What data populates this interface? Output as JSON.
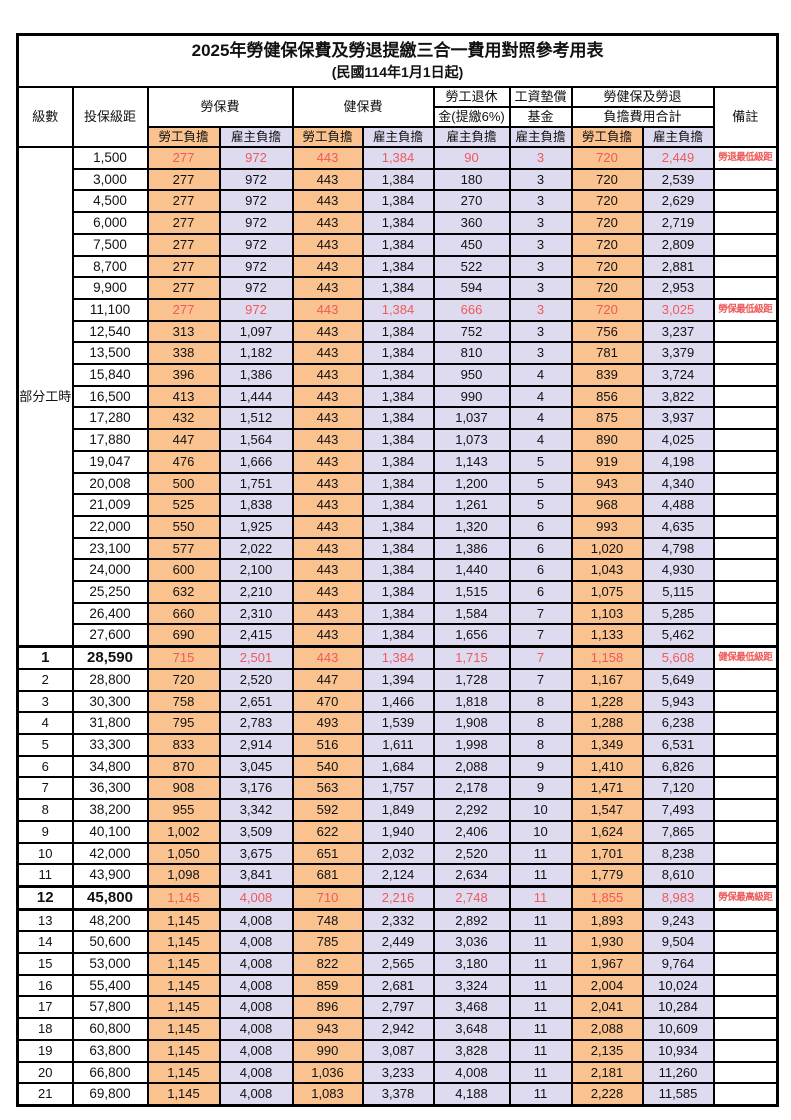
{
  "title": "2025年勞健保保費及勞退提繳三合一費用對照參考用表",
  "subtitle": "(民國114年1月1日起)",
  "header": {
    "level": "級數",
    "bracket": "投保級距",
    "labor_ins": "勞保費",
    "health_ins": "健保費",
    "pension_line1": "勞工退休",
    "pension_line2": "金(提繳6%)",
    "wage_fund_line1": "工資墊償",
    "wage_fund_line2": "基金",
    "total_line1": "勞健保及勞退",
    "total_line2": "負擔費用合計",
    "remark": "備註",
    "employee": "勞工負擔",
    "employer": "雇主負擔"
  },
  "group_label": "部分工時",
  "colors": {
    "employee_bg": "#FAC28E",
    "employer_bg": "#DEDBF0",
    "highlight_red": "#EE5A5A",
    "border": "#000000"
  },
  "rows": [
    {
      "level": "",
      "bracket": "1,500",
      "values": [
        "277",
        "972",
        "443",
        "1,384",
        "90",
        "3",
        "720",
        "2,449"
      ],
      "note": "勞退最低級距",
      "red": true,
      "bold": false
    },
    {
      "level": "",
      "bracket": "3,000",
      "values": [
        "277",
        "972",
        "443",
        "1,384",
        "180",
        "3",
        "720",
        "2,539"
      ],
      "note": "",
      "red": false,
      "bold": false
    },
    {
      "level": "",
      "bracket": "4,500",
      "values": [
        "277",
        "972",
        "443",
        "1,384",
        "270",
        "3",
        "720",
        "2,629"
      ],
      "note": "",
      "red": false,
      "bold": false
    },
    {
      "level": "",
      "bracket": "6,000",
      "values": [
        "277",
        "972",
        "443",
        "1,384",
        "360",
        "3",
        "720",
        "2,719"
      ],
      "note": "",
      "red": false,
      "bold": false
    },
    {
      "level": "",
      "bracket": "7,500",
      "values": [
        "277",
        "972",
        "443",
        "1,384",
        "450",
        "3",
        "720",
        "2,809"
      ],
      "note": "",
      "red": false,
      "bold": false
    },
    {
      "level": "",
      "bracket": "8,700",
      "values": [
        "277",
        "972",
        "443",
        "1,384",
        "522",
        "3",
        "720",
        "2,881"
      ],
      "note": "",
      "red": false,
      "bold": false
    },
    {
      "level": "",
      "bracket": "9,900",
      "values": [
        "277",
        "972",
        "443",
        "1,384",
        "594",
        "3",
        "720",
        "2,953"
      ],
      "note": "",
      "red": false,
      "bold": false
    },
    {
      "level": "",
      "bracket": "11,100",
      "values": [
        "277",
        "972",
        "443",
        "1,384",
        "666",
        "3",
        "720",
        "3,025"
      ],
      "note": "勞保最低級距",
      "red": true,
      "bold": false
    },
    {
      "level": "",
      "bracket": "12,540",
      "values": [
        "313",
        "1,097",
        "443",
        "1,384",
        "752",
        "3",
        "756",
        "3,237"
      ],
      "note": "",
      "red": false,
      "bold": false
    },
    {
      "level": "",
      "bracket": "13,500",
      "values": [
        "338",
        "1,182",
        "443",
        "1,384",
        "810",
        "3",
        "781",
        "3,379"
      ],
      "note": "",
      "red": false,
      "bold": false
    },
    {
      "level": "",
      "bracket": "15,840",
      "values": [
        "396",
        "1,386",
        "443",
        "1,384",
        "950",
        "4",
        "839",
        "3,724"
      ],
      "note": "",
      "red": false,
      "bold": false
    },
    {
      "level": "",
      "bracket": "16,500",
      "values": [
        "413",
        "1,444",
        "443",
        "1,384",
        "990",
        "4",
        "856",
        "3,822"
      ],
      "note": "",
      "red": false,
      "bold": false
    },
    {
      "level": "",
      "bracket": "17,280",
      "values": [
        "432",
        "1,512",
        "443",
        "1,384",
        "1,037",
        "4",
        "875",
        "3,937"
      ],
      "note": "",
      "red": false,
      "bold": false
    },
    {
      "level": "",
      "bracket": "17,880",
      "values": [
        "447",
        "1,564",
        "443",
        "1,384",
        "1,073",
        "4",
        "890",
        "4,025"
      ],
      "note": "",
      "red": false,
      "bold": false
    },
    {
      "level": "",
      "bracket": "19,047",
      "values": [
        "476",
        "1,666",
        "443",
        "1,384",
        "1,143",
        "5",
        "919",
        "4,198"
      ],
      "note": "",
      "red": false,
      "bold": false
    },
    {
      "level": "",
      "bracket": "20,008",
      "values": [
        "500",
        "1,751",
        "443",
        "1,384",
        "1,200",
        "5",
        "943",
        "4,340"
      ],
      "note": "",
      "red": false,
      "bold": false
    },
    {
      "level": "",
      "bracket": "21,009",
      "values": [
        "525",
        "1,838",
        "443",
        "1,384",
        "1,261",
        "5",
        "968",
        "4,488"
      ],
      "note": "",
      "red": false,
      "bold": false
    },
    {
      "level": "",
      "bracket": "22,000",
      "values": [
        "550",
        "1,925",
        "443",
        "1,384",
        "1,320",
        "6",
        "993",
        "4,635"
      ],
      "note": "",
      "red": false,
      "bold": false
    },
    {
      "level": "",
      "bracket": "23,100",
      "values": [
        "577",
        "2,022",
        "443",
        "1,384",
        "1,386",
        "6",
        "1,020",
        "4,798"
      ],
      "note": "",
      "red": false,
      "bold": false
    },
    {
      "level": "",
      "bracket": "24,000",
      "values": [
        "600",
        "2,100",
        "443",
        "1,384",
        "1,440",
        "6",
        "1,043",
        "4,930"
      ],
      "note": "",
      "red": false,
      "bold": false
    },
    {
      "level": "",
      "bracket": "25,250",
      "values": [
        "632",
        "2,210",
        "443",
        "1,384",
        "1,515",
        "6",
        "1,075",
        "5,115"
      ],
      "note": "",
      "red": false,
      "bold": false
    },
    {
      "level": "",
      "bracket": "26,400",
      "values": [
        "660",
        "2,310",
        "443",
        "1,384",
        "1,584",
        "7",
        "1,103",
        "5,285"
      ],
      "note": "",
      "red": false,
      "bold": false
    },
    {
      "level": "",
      "bracket": "27,600",
      "values": [
        "690",
        "2,415",
        "443",
        "1,384",
        "1,656",
        "7",
        "1,133",
        "5,462"
      ],
      "note": "",
      "red": false,
      "bold": false
    },
    {
      "level": "1",
      "bracket": "28,590",
      "values": [
        "715",
        "2,501",
        "443",
        "1,384",
        "1,715",
        "7",
        "1,158",
        "5,608"
      ],
      "note": "健保最低級距",
      "red": true,
      "bold": true
    },
    {
      "level": "2",
      "bracket": "28,800",
      "values": [
        "720",
        "2,520",
        "447",
        "1,394",
        "1,728",
        "7",
        "1,167",
        "5,649"
      ],
      "note": "",
      "red": false,
      "bold": false
    },
    {
      "level": "3",
      "bracket": "30,300",
      "values": [
        "758",
        "2,651",
        "470",
        "1,466",
        "1,818",
        "8",
        "1,228",
        "5,943"
      ],
      "note": "",
      "red": false,
      "bold": false
    },
    {
      "level": "4",
      "bracket": "31,800",
      "values": [
        "795",
        "2,783",
        "493",
        "1,539",
        "1,908",
        "8",
        "1,288",
        "6,238"
      ],
      "note": "",
      "red": false,
      "bold": false
    },
    {
      "level": "5",
      "bracket": "33,300",
      "values": [
        "833",
        "2,914",
        "516",
        "1,611",
        "1,998",
        "8",
        "1,349",
        "6,531"
      ],
      "note": "",
      "red": false,
      "bold": false
    },
    {
      "level": "6",
      "bracket": "34,800",
      "values": [
        "870",
        "3,045",
        "540",
        "1,684",
        "2,088",
        "9",
        "1,410",
        "6,826"
      ],
      "note": "",
      "red": false,
      "bold": false
    },
    {
      "level": "7",
      "bracket": "36,300",
      "values": [
        "908",
        "3,176",
        "563",
        "1,757",
        "2,178",
        "9",
        "1,471",
        "7,120"
      ],
      "note": "",
      "red": false,
      "bold": false
    },
    {
      "level": "8",
      "bracket": "38,200",
      "values": [
        "955",
        "3,342",
        "592",
        "1,849",
        "2,292",
        "10",
        "1,547",
        "7,493"
      ],
      "note": "",
      "red": false,
      "bold": false
    },
    {
      "level": "9",
      "bracket": "40,100",
      "values": [
        "1,002",
        "3,509",
        "622",
        "1,940",
        "2,406",
        "10",
        "1,624",
        "7,865"
      ],
      "note": "",
      "red": false,
      "bold": false
    },
    {
      "level": "10",
      "bracket": "42,000",
      "values": [
        "1,050",
        "3,675",
        "651",
        "2,032",
        "2,520",
        "11",
        "1,701",
        "8,238"
      ],
      "note": "",
      "red": false,
      "bold": false
    },
    {
      "level": "11",
      "bracket": "43,900",
      "values": [
        "1,098",
        "3,841",
        "681",
        "2,124",
        "2,634",
        "11",
        "1,779",
        "8,610"
      ],
      "note": "",
      "red": false,
      "bold": false
    },
    {
      "level": "12",
      "bracket": "45,800",
      "values": [
        "1,145",
        "4,008",
        "710",
        "2,216",
        "2,748",
        "11",
        "1,855",
        "8,983"
      ],
      "note": "勞保最高級距",
      "red": true,
      "bold": true
    },
    {
      "level": "13",
      "bracket": "48,200",
      "values": [
        "1,145",
        "4,008",
        "748",
        "2,332",
        "2,892",
        "11",
        "1,893",
        "9,243"
      ],
      "note": "",
      "red": false,
      "bold": false
    },
    {
      "level": "14",
      "bracket": "50,600",
      "values": [
        "1,145",
        "4,008",
        "785",
        "2,449",
        "3,036",
        "11",
        "1,930",
        "9,504"
      ],
      "note": "",
      "red": false,
      "bold": false
    },
    {
      "level": "15",
      "bracket": "53,000",
      "values": [
        "1,145",
        "4,008",
        "822",
        "2,565",
        "3,180",
        "11",
        "1,967",
        "9,764"
      ],
      "note": "",
      "red": false,
      "bold": false
    },
    {
      "level": "16",
      "bracket": "55,400",
      "values": [
        "1,145",
        "4,008",
        "859",
        "2,681",
        "3,324",
        "11",
        "2,004",
        "10,024"
      ],
      "note": "",
      "red": false,
      "bold": false
    },
    {
      "level": "17",
      "bracket": "57,800",
      "values": [
        "1,145",
        "4,008",
        "896",
        "2,797",
        "3,468",
        "11",
        "2,041",
        "10,284"
      ],
      "note": "",
      "red": false,
      "bold": false
    },
    {
      "level": "18",
      "bracket": "60,800",
      "values": [
        "1,145",
        "4,008",
        "943",
        "2,942",
        "3,648",
        "11",
        "2,088",
        "10,609"
      ],
      "note": "",
      "red": false,
      "bold": false
    },
    {
      "level": "19",
      "bracket": "63,800",
      "values": [
        "1,145",
        "4,008",
        "990",
        "3,087",
        "3,828",
        "11",
        "2,135",
        "10,934"
      ],
      "note": "",
      "red": false,
      "bold": false
    },
    {
      "level": "20",
      "bracket": "66,800",
      "values": [
        "1,145",
        "4,008",
        "1,036",
        "3,233",
        "4,008",
        "11",
        "2,181",
        "11,260"
      ],
      "note": "",
      "red": false,
      "bold": false
    },
    {
      "level": "21",
      "bracket": "69,800",
      "values": [
        "1,145",
        "4,008",
        "1,083",
        "3,378",
        "4,188",
        "11",
        "2,228",
        "11,585"
      ],
      "note": "",
      "red": false,
      "bold": false
    }
  ]
}
